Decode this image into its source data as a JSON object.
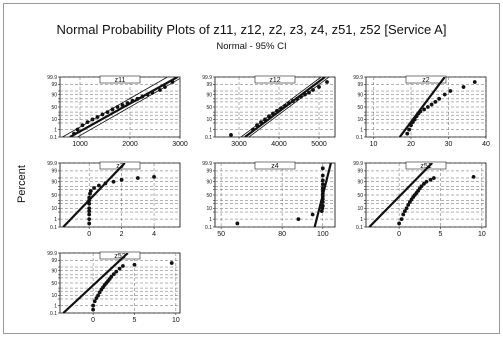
{
  "figure": {
    "title": "Normal Probability Plots of z11, z12, z2, z3, z4, z51, z52 [Service A]",
    "subtitle": "Normal - 95% CI",
    "ylabel": "Percent"
  },
  "chart_data": [
    {
      "type": "scatter",
      "title": "z11",
      "xlabel": "",
      "ylabel": "Percent",
      "x_ticks": [
        1000,
        2000,
        3000
      ],
      "xlim": [
        600,
        3000
      ],
      "y_ticks": [
        0.1,
        1,
        5,
        10,
        20,
        30,
        50,
        70,
        80,
        90,
        95,
        99,
        99.9
      ],
      "fit_line": [
        [
          800,
          0.1
        ],
        [
          2950,
          99.9
        ]
      ],
      "ci_lines": [
        [
          [
            650,
            0.1
          ],
          [
            2750,
            99.9
          ]
        ],
        [
          [
            950,
            0.1
          ],
          [
            3050,
            99.9
          ]
        ]
      ],
      "points": [
        [
          880,
          0.3
        ],
        [
          950,
          1
        ],
        [
          1050,
          3
        ],
        [
          1150,
          6
        ],
        [
          1250,
          10
        ],
        [
          1350,
          15
        ],
        [
          1450,
          22
        ],
        [
          1550,
          30
        ],
        [
          1650,
          40
        ],
        [
          1750,
          50
        ],
        [
          1850,
          58
        ],
        [
          1950,
          66
        ],
        [
          2050,
          74
        ],
        [
          2150,
          80
        ],
        [
          2250,
          86
        ],
        [
          2350,
          90
        ],
        [
          2450,
          93
        ],
        [
          2600,
          96
        ],
        [
          2700,
          98
        ],
        [
          2850,
          99.5
        ]
      ]
    },
    {
      "type": "scatter",
      "title": "z12",
      "xlabel": "",
      "ylabel": "Percent",
      "x_ticks": [
        3000,
        4000,
        5000
      ],
      "xlim": [
        2400,
        5400
      ],
      "y_ticks": [
        0.1,
        1,
        5,
        10,
        20,
        30,
        50,
        70,
        80,
        90,
        95,
        99,
        99.9
      ],
      "fit_line": [
        [
          3150,
          0.1
        ],
        [
          5150,
          99.9
        ]
      ],
      "ci_lines": [
        [
          [
            3050,
            0.1
          ],
          [
            5050,
            99.9
          ]
        ],
        [
          [
            3250,
            0.1
          ],
          [
            5250,
            99.9
          ]
        ]
      ],
      "points": [
        [
          2800,
          0.2
        ],
        [
          3350,
          1
        ],
        [
          3450,
          3
        ],
        [
          3550,
          6
        ],
        [
          3650,
          10
        ],
        [
          3750,
          17
        ],
        [
          3850,
          25
        ],
        [
          3950,
          35
        ],
        [
          4050,
          45
        ],
        [
          4150,
          55
        ],
        [
          4250,
          65
        ],
        [
          4350,
          73
        ],
        [
          4450,
          80
        ],
        [
          4550,
          86
        ],
        [
          4650,
          90
        ],
        [
          4750,
          93
        ],
        [
          4850,
          96
        ],
        [
          5000,
          98
        ],
        [
          5200,
          99.5
        ]
      ]
    },
    {
      "type": "scatter",
      "title": "z2",
      "xlabel": "",
      "ylabel": "Percent",
      "x_ticks": [
        10,
        20,
        30,
        40
      ],
      "xlim": [
        8,
        40
      ],
      "y_ticks": [
        0.1,
        1,
        5,
        10,
        20,
        30,
        50,
        70,
        80,
        90,
        95,
        99,
        99.9
      ],
      "fit_line": [
        [
          17,
          0.1
        ],
        [
          29,
          99.9
        ]
      ],
      "ci_lines": [],
      "points": [
        [
          19,
          0.3
        ],
        [
          19.5,
          1
        ],
        [
          20,
          3
        ],
        [
          20.5,
          6
        ],
        [
          21,
          10
        ],
        [
          21.5,
          17
        ],
        [
          22,
          25
        ],
        [
          22.5,
          32
        ],
        [
          23.5,
          40
        ],
        [
          24.5,
          50
        ],
        [
          25.5,
          60
        ],
        [
          26.5,
          70
        ],
        [
          27.5,
          80
        ],
        [
          29,
          90
        ],
        [
          30.5,
          95
        ],
        [
          34,
          98
        ],
        [
          37,
          99.5
        ]
      ]
    },
    {
      "type": "scatter",
      "title": "z3",
      "xlabel": "",
      "ylabel": "Percent",
      "x_ticks": [
        0,
        2,
        4
      ],
      "xlim": [
        -1.8,
        5.6
      ],
      "y_ticks": [
        0.1,
        1,
        5,
        10,
        20,
        30,
        50,
        70,
        80,
        90,
        95,
        99,
        99.9
      ],
      "fit_line": [
        [
          -1.6,
          0.1
        ],
        [
          2.2,
          99.9
        ]
      ],
      "ci_lines": [],
      "points": [
        [
          0,
          0.3
        ],
        [
          0,
          1
        ],
        [
          0,
          3
        ],
        [
          0,
          6
        ],
        [
          0,
          10
        ],
        [
          0,
          20
        ],
        [
          0,
          30
        ],
        [
          0,
          40
        ],
        [
          0.05,
          55
        ],
        [
          0.1,
          65
        ],
        [
          0.3,
          75
        ],
        [
          0.6,
          82
        ],
        [
          1,
          87
        ],
        [
          1.5,
          90
        ],
        [
          2,
          93
        ],
        [
          3,
          95
        ],
        [
          4,
          96
        ]
      ]
    },
    {
      "type": "scatter",
      "title": "z4",
      "xlabel": "",
      "ylabel": "Percent",
      "x_ticks": [
        50,
        80,
        100
      ],
      "xlim": [
        47,
        106
      ],
      "y_ticks": [
        0.1,
        1,
        5,
        10,
        20,
        30,
        50,
        70,
        80,
        90,
        95,
        99,
        99.9
      ],
      "fit_line": [
        [
          96,
          0.1
        ],
        [
          104,
          99.9
        ]
      ],
      "ci_lines": [],
      "points": [
        [
          58,
          0.3
        ],
        [
          88,
          1
        ],
        [
          95,
          3
        ],
        [
          99.5,
          6
        ],
        [
          99.8,
          10
        ],
        [
          100,
          15
        ],
        [
          100,
          25
        ],
        [
          100,
          35
        ],
        [
          100,
          45
        ],
        [
          100,
          55
        ],
        [
          100,
          65
        ],
        [
          100,
          75
        ],
        [
          100,
          85
        ],
        [
          100,
          92
        ],
        [
          100,
          97
        ],
        [
          100,
          99.5
        ]
      ]
    },
    {
      "type": "scatter",
      "title": "z51",
      "xlabel": "",
      "ylabel": "Percent",
      "x_ticks": [
        0,
        5,
        10
      ],
      "xlim": [
        -4,
        10.5
      ],
      "y_ticks": [
        0.1,
        1,
        5,
        10,
        20,
        30,
        50,
        70,
        80,
        90,
        95,
        99,
        99.9
      ],
      "fit_line": [
        [
          -3.6,
          0.1
        ],
        [
          4,
          99.9
        ]
      ],
      "ci_lines": [],
      "points": [
        [
          0,
          0.3
        ],
        [
          0.3,
          1
        ],
        [
          0.5,
          3
        ],
        [
          0.7,
          6
        ],
        [
          0.9,
          10
        ],
        [
          1.1,
          17
        ],
        [
          1.3,
          25
        ],
        [
          1.5,
          33
        ],
        [
          1.7,
          42
        ],
        [
          1.9,
          50
        ],
        [
          2.1,
          58
        ],
        [
          2.3,
          66
        ],
        [
          2.5,
          74
        ],
        [
          2.7,
          80
        ],
        [
          3,
          86
        ],
        [
          3.3,
          90
        ],
        [
          3.8,
          93
        ],
        [
          4.2,
          95
        ],
        [
          9,
          96
        ]
      ]
    },
    {
      "type": "scatter",
      "title": "z52",
      "xlabel": "",
      "ylabel": "Percent",
      "x_ticks": [
        0,
        5,
        10
      ],
      "xlim": [
        -4,
        10.5
      ],
      "y_ticks": [
        0.1,
        1,
        5,
        10,
        20,
        30,
        50,
        70,
        80,
        90,
        95,
        99,
        99.9
      ],
      "fit_line": [
        [
          -3.6,
          0.1
        ],
        [
          4.2,
          99.9
        ]
      ],
      "ci_lines": [],
      "points": [
        [
          0,
          0.3
        ],
        [
          0,
          1
        ],
        [
          0.2,
          3
        ],
        [
          0.4,
          6
        ],
        [
          0.6,
          10
        ],
        [
          0.8,
          17
        ],
        [
          1,
          25
        ],
        [
          1.2,
          33
        ],
        [
          1.4,
          42
        ],
        [
          1.6,
          50
        ],
        [
          1.8,
          58
        ],
        [
          2,
          66
        ],
        [
          2.2,
          74
        ],
        [
          2.5,
          82
        ],
        [
          2.8,
          88
        ],
        [
          3.2,
          93
        ],
        [
          3.6,
          96
        ],
        [
          5,
          97
        ],
        [
          9.5,
          98
        ]
      ]
    }
  ]
}
